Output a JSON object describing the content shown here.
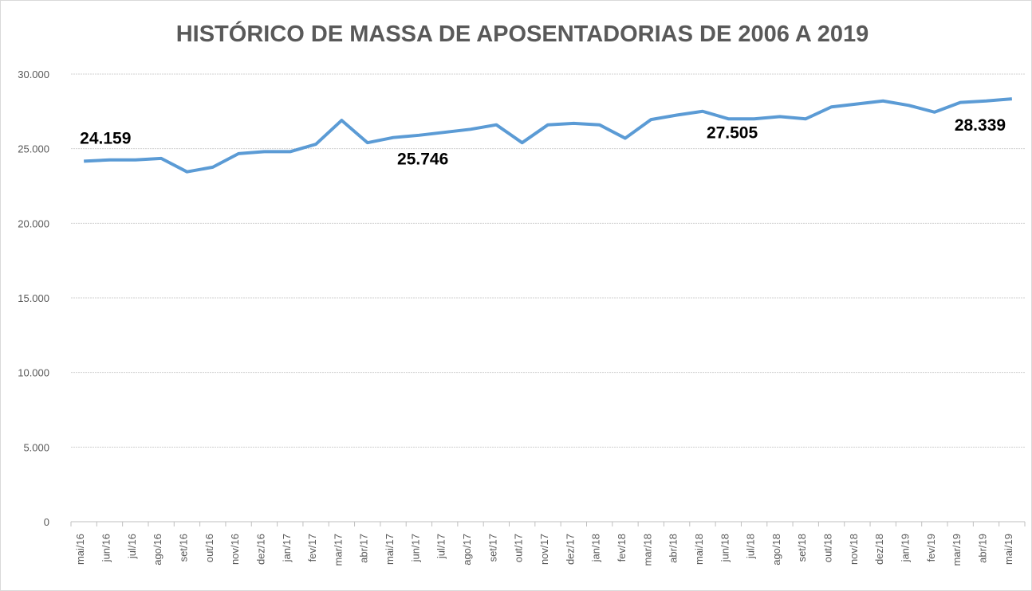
{
  "chart_data": {
    "type": "line",
    "title": "HISTÓRICO DE MASSA DE APOSENTADORIAS DE 2006 A 2019",
    "categories": [
      "mai/16",
      "jun/16",
      "jul/16",
      "ago/16",
      "set/16",
      "out/16",
      "nov/16",
      "dez/16",
      "jan/17",
      "fev/17",
      "mar/17",
      "abr/17",
      "mai/17",
      "jun/17",
      "jul/17",
      "ago/17",
      "set/17",
      "out/17",
      "nov/17",
      "dez/17",
      "jan/18",
      "fev/18",
      "mar/18",
      "abr/18",
      "mai/18",
      "jun/18",
      "jul/18",
      "ago/18",
      "set/18",
      "out/18",
      "nov/18",
      "dez/18",
      "jan/19",
      "fev/19",
      "mar/19",
      "abr/19",
      "mai/19"
    ],
    "series": [
      {
        "color": "#5b9bd5",
        "values": [
          24159,
          24250,
          24250,
          24350,
          23450,
          23760,
          24670,
          24800,
          24800,
          25300,
          26900,
          25400,
          25746,
          25900,
          26100,
          26300,
          26600,
          25400,
          26600,
          26700,
          26600,
          25700,
          26950,
          27250,
          27505,
          27000,
          27000,
          27150,
          27000,
          27800,
          28000,
          28200,
          27900,
          27450,
          28100,
          28200,
          28339
        ],
        "value_labels": [
          "24.159",
          null,
          null,
          null,
          null,
          null,
          null,
          null,
          null,
          null,
          null,
          null,
          "25.746",
          null,
          null,
          null,
          null,
          null,
          null,
          null,
          null,
          null,
          null,
          null,
          "27.505",
          null,
          null,
          null,
          null,
          null,
          null,
          null,
          null,
          null,
          null,
          null,
          "28.339"
        ]
      }
    ],
    "ylim": [
      0,
      30000
    ],
    "yticks": [
      0,
      {
        "value": 5000,
        "label": "5.000"
      },
      {
        "value": 10000,
        "label": "10.000"
      },
      {
        "value": 15000,
        "label": "15.000"
      },
      {
        "value": 20000,
        "label": "20.000"
      },
      {
        "value": 25000,
        "label": "25.000"
      },
      {
        "value": 30000,
        "label": "30.000"
      }
    ],
    "grid": true
  }
}
